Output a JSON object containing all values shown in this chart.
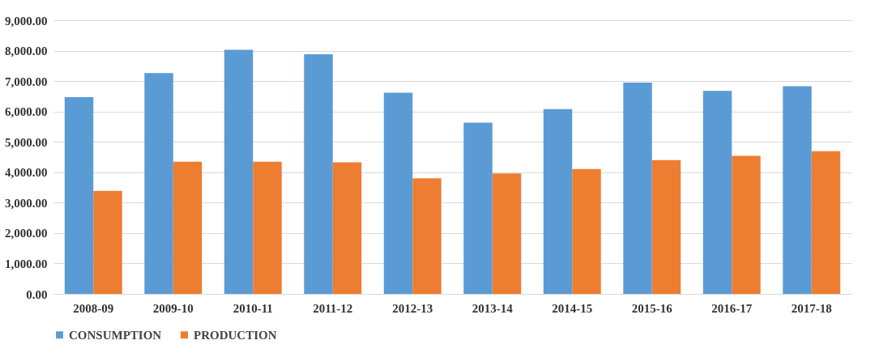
{
  "chart_data": {
    "type": "bar",
    "categories": [
      "2008-09",
      "2009-10",
      "2010-11",
      "2011-12",
      "2012-13",
      "2013-14",
      "2014-15",
      "2015-16",
      "2016-17",
      "2017-18"
    ],
    "series": [
      {
        "name": "CONSUMPTION",
        "color": "#5b9bd5",
        "values": [
          6470,
          7260,
          8030,
          7880,
          6620,
          5630,
          6080,
          6950,
          6680,
          6830
        ]
      },
      {
        "name": "PRODUCTION",
        "color": "#ed7d31",
        "values": [
          3390,
          4350,
          4350,
          4330,
          3800,
          3960,
          4110,
          4400,
          4540,
          4690
        ]
      }
    ],
    "ylim": [
      0,
      9000
    ],
    "yticks": [
      {
        "value": 0,
        "label": "0.00"
      },
      {
        "value": 1000,
        "label": "1,000.00"
      },
      {
        "value": 2000,
        "label": "2,000.00"
      },
      {
        "value": 3000,
        "label": "3,000.00"
      },
      {
        "value": 4000,
        "label": "4,000.00"
      },
      {
        "value": 5000,
        "label": "5,000.00"
      },
      {
        "value": 6000,
        "label": "6,000.00"
      },
      {
        "value": 7000,
        "label": "7,000.00"
      },
      {
        "value": 8000,
        "label": "8,000.00"
      },
      {
        "value": 9000,
        "label": "9,000.00"
      }
    ],
    "grid": "y",
    "legend": "bottom"
  }
}
